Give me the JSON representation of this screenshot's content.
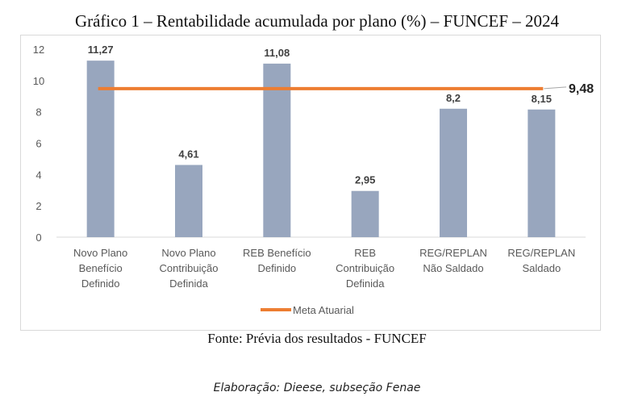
{
  "chart_data": {
    "type": "bar",
    "title": "Gráfico 1 – Rentabilidade acumulada por plano (%) – FUNCEF – 2024",
    "categories": [
      [
        "Novo Plano",
        "Benefício",
        "Definido"
      ],
      [
        "Novo Plano",
        "Contribuição",
        "Definida"
      ],
      [
        "REB Benefício",
        "Definido"
      ],
      [
        "REB",
        "Contribuição",
        "Definida"
      ],
      [
        "REG/REPLAN",
        "Não Saldado"
      ],
      [
        "REG/REPLAN",
        "Saldado"
      ]
    ],
    "values": [
      11.27,
      4.61,
      11.08,
      2.95,
      8.2,
      8.15
    ],
    "data_labels": [
      "11,27",
      "4,61",
      "11,08",
      "2,95",
      "8,2",
      "8,15"
    ],
    "reference_line": {
      "name": "Meta Atuarial",
      "value": 9.48,
      "label": "9,48",
      "color": "#ED7D31"
    },
    "bar_color": "#98A6BE",
    "yticks": [
      0,
      2,
      4,
      6,
      8,
      10,
      12
    ],
    "ylim": [
      0,
      12
    ],
    "grid": false,
    "legend_position": "bottom",
    "source": "Fonte: Prévia dos resultados - FUNCEF"
  },
  "credit": "Elaboração: Dieese, subseção Fenae"
}
